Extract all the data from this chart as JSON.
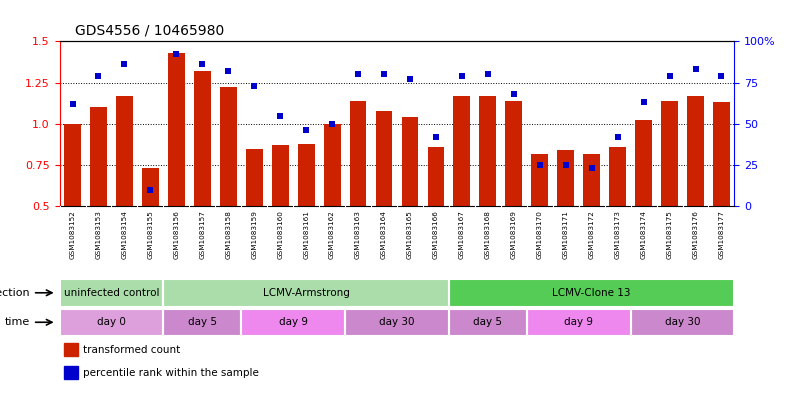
{
  "title": "GDS4556 / 10465980",
  "samples": [
    "GSM1083152",
    "GSM1083153",
    "GSM1083154",
    "GSM1083155",
    "GSM1083156",
    "GSM1083157",
    "GSM1083158",
    "GSM1083159",
    "GSM1083160",
    "GSM1083161",
    "GSM1083162",
    "GSM1083163",
    "GSM1083164",
    "GSM1083165",
    "GSM1083166",
    "GSM1083167",
    "GSM1083168",
    "GSM1083169",
    "GSM1083170",
    "GSM1083171",
    "GSM1083172",
    "GSM1083173",
    "GSM1083174",
    "GSM1083175",
    "GSM1083176",
    "GSM1083177"
  ],
  "bar_heights": [
    1.0,
    1.1,
    1.17,
    0.73,
    1.43,
    1.32,
    1.22,
    0.85,
    0.87,
    0.88,
    1.0,
    1.14,
    1.08,
    1.04,
    0.86,
    1.17,
    1.17,
    1.14,
    0.82,
    0.84,
    0.82,
    0.86,
    1.02,
    1.14,
    1.17,
    1.13
  ],
  "blue_dot_pct": [
    62,
    79,
    86,
    10,
    92,
    86,
    82,
    73,
    55,
    46,
    50,
    80,
    80,
    77,
    42,
    79,
    80,
    68,
    25,
    25,
    23,
    42,
    63,
    79,
    83,
    79
  ],
  "bar_color": "#CC2200",
  "dot_color": "#0000CC",
  "ylim_left": [
    0.5,
    1.5
  ],
  "ylim_right": [
    0,
    100
  ],
  "yticks_left": [
    0.5,
    0.75,
    1.0,
    1.25,
    1.5
  ],
  "yticks_right": [
    0,
    25,
    50,
    75,
    100
  ],
  "ytick_labels_right": [
    "0",
    "25",
    "50",
    "75",
    "100%"
  ],
  "hlines": [
    0.75,
    1.0,
    1.25
  ],
  "infection_groups": [
    {
      "text": "uninfected control",
      "start": 0,
      "end": 4,
      "color": "#99DD99"
    },
    {
      "text": "LCMV-Armstrong",
      "start": 4,
      "end": 15,
      "color": "#99DD99"
    },
    {
      "text": "LCMV-Clone 13",
      "start": 15,
      "end": 26,
      "color": "#44CC44"
    }
  ],
  "time_groups": [
    {
      "text": "day 0",
      "start": 0,
      "end": 4,
      "color": "#DDA0DD"
    },
    {
      "text": "day 5",
      "start": 4,
      "end": 7,
      "color": "#CC88CC"
    },
    {
      "text": "day 9",
      "start": 7,
      "end": 11,
      "color": "#DD99DD"
    },
    {
      "text": "day 30",
      "start": 11,
      "end": 15,
      "color": "#CC88CC"
    },
    {
      "text": "day 5",
      "start": 15,
      "end": 18,
      "color": "#CC88CC"
    },
    {
      "text": "day 9",
      "start": 18,
      "end": 22,
      "color": "#DD99DD"
    },
    {
      "text": "day 30",
      "start": 22,
      "end": 26,
      "color": "#CC88CC"
    }
  ],
  "xtick_bg": "#DDDDDD",
  "left_label_infection": "infection",
  "left_label_time": "time"
}
